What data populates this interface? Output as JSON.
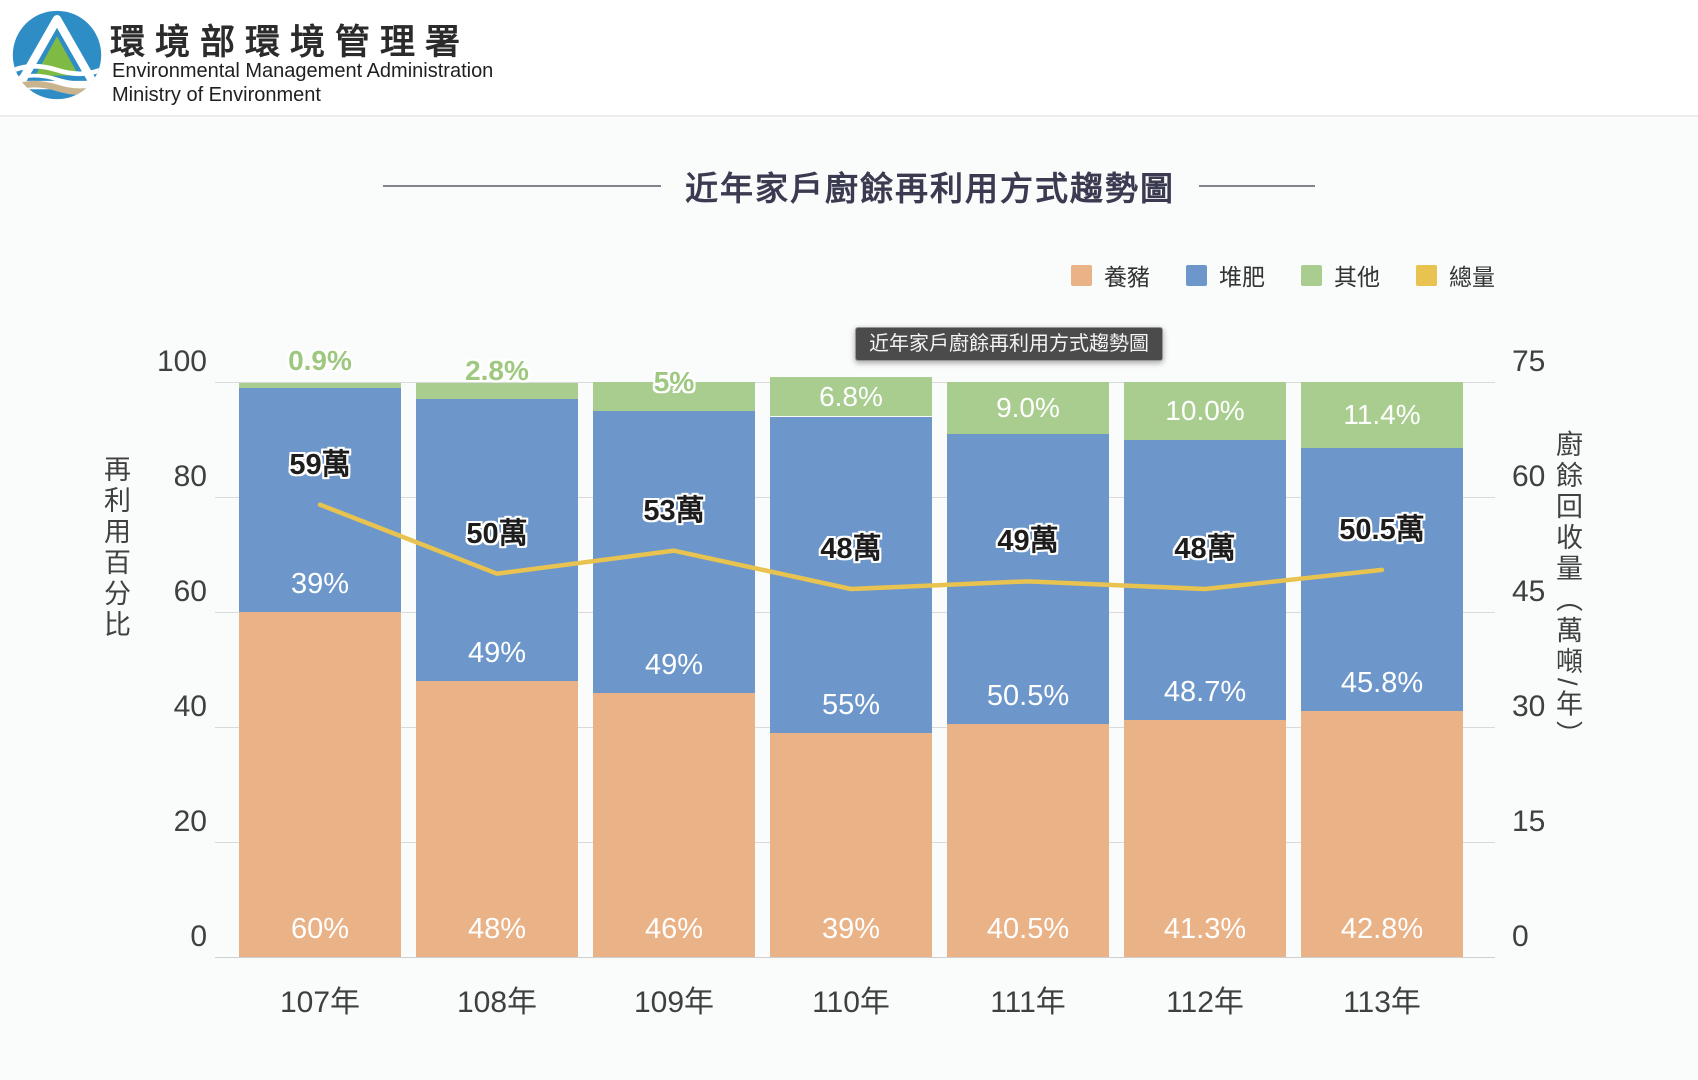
{
  "header": {
    "org_zh": "環境部環境管理署",
    "org_en1": "Environmental Management Administration",
    "org_en2": "Ministry of Environment"
  },
  "title": "近年家戶廚餘再利用方式趨勢圖",
  "tooltip_text": "近年家戶廚餘再利用方式趨勢圖",
  "legend": [
    {
      "label": "養豬",
      "color": "#EAB287"
    },
    {
      "label": "堆肥",
      "color": "#6D97CA"
    },
    {
      "label": "其他",
      "color": "#A8CD8F"
    },
    {
      "label": "總量",
      "color": "#E8C34F"
    }
  ],
  "chart_data": {
    "type": "bar",
    "subtype": "100%-stacked-bar-with-line",
    "categories": [
      "107年",
      "108年",
      "109年",
      "110年",
      "111年",
      "112年",
      "113年"
    ],
    "series": [
      {
        "name": "養豬",
        "role": "bar",
        "color": "#EAB287",
        "values": [
          60,
          48,
          46,
          39,
          40.5,
          41.3,
          42.8
        ],
        "labels": [
          "60%",
          "48%",
          "46%",
          "39%",
          "40.5%",
          "41.3%",
          "42.8%"
        ]
      },
      {
        "name": "堆肥",
        "role": "bar",
        "color": "#6D97CA",
        "values": [
          39,
          49,
          49,
          55,
          50.5,
          48.7,
          45.8
        ],
        "labels": [
          "39%",
          "49%",
          "49%",
          "55%",
          "50.5%",
          "48.7%",
          "45.8%"
        ]
      },
      {
        "name": "其他",
        "role": "bar",
        "color": "#A8CD8F",
        "values": [
          0.9,
          2.8,
          5,
          6.8,
          9.0,
          10.0,
          11.4
        ],
        "labels": [
          "0.9%",
          "2.8%",
          "5%",
          "6.8%",
          "9.0%",
          "10.0%",
          "11.4%"
        ],
        "label_outside_offsets": [
          -22,
          -12,
          0,
          null,
          null,
          null,
          null
        ]
      },
      {
        "name": "總量",
        "role": "line",
        "axis": "right",
        "color": "#E8C34F",
        "values": [
          59,
          50,
          53,
          48,
          49,
          48,
          50.5
        ],
        "labels": [
          "59萬",
          "50萬",
          "53萬",
          "48萬",
          "49萬",
          "48萬",
          "50.5萬"
        ]
      }
    ],
    "left_axis": {
      "title": "再利用百分比",
      "ticks": [
        0,
        20,
        40,
        60,
        80,
        100
      ],
      "min": 0,
      "max": 100
    },
    "right_axis": {
      "title": "廚餘回收量（萬噸/年）",
      "ticks": [
        0,
        15,
        30,
        45,
        60,
        75
      ],
      "min": 0,
      "max": 75
    },
    "grid": true,
    "legend_position": "top-right"
  }
}
